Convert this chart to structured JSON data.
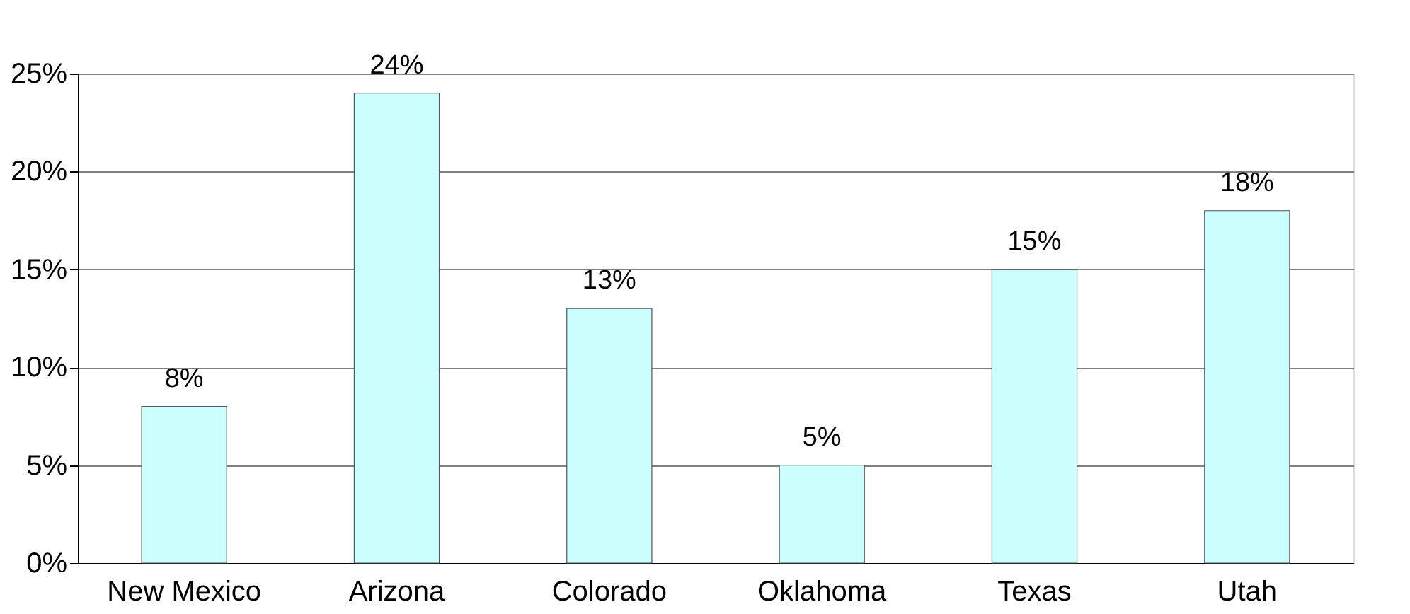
{
  "chart_data": {
    "type": "bar",
    "categories": [
      "New Mexico",
      "Arizona",
      "Colorado",
      "Oklahoma",
      "Texas",
      "Utah"
    ],
    "values": [
      8,
      24,
      13,
      5,
      15,
      18
    ],
    "value_labels": [
      "8%",
      "24%",
      "13%",
      "5%",
      "15%",
      "18%"
    ],
    "color": "#ccffff",
    "ylim": [
      0,
      25
    ],
    "yticks": [
      {
        "value": 0,
        "label": "0%"
      },
      {
        "value": 5,
        "label": "5%"
      },
      {
        "value": 10,
        "label": "10%"
      },
      {
        "value": 15,
        "label": "15%"
      },
      {
        "value": 20,
        "label": "20%"
      },
      {
        "value": 25,
        "label": "25%"
      }
    ],
    "grid": "y"
  }
}
